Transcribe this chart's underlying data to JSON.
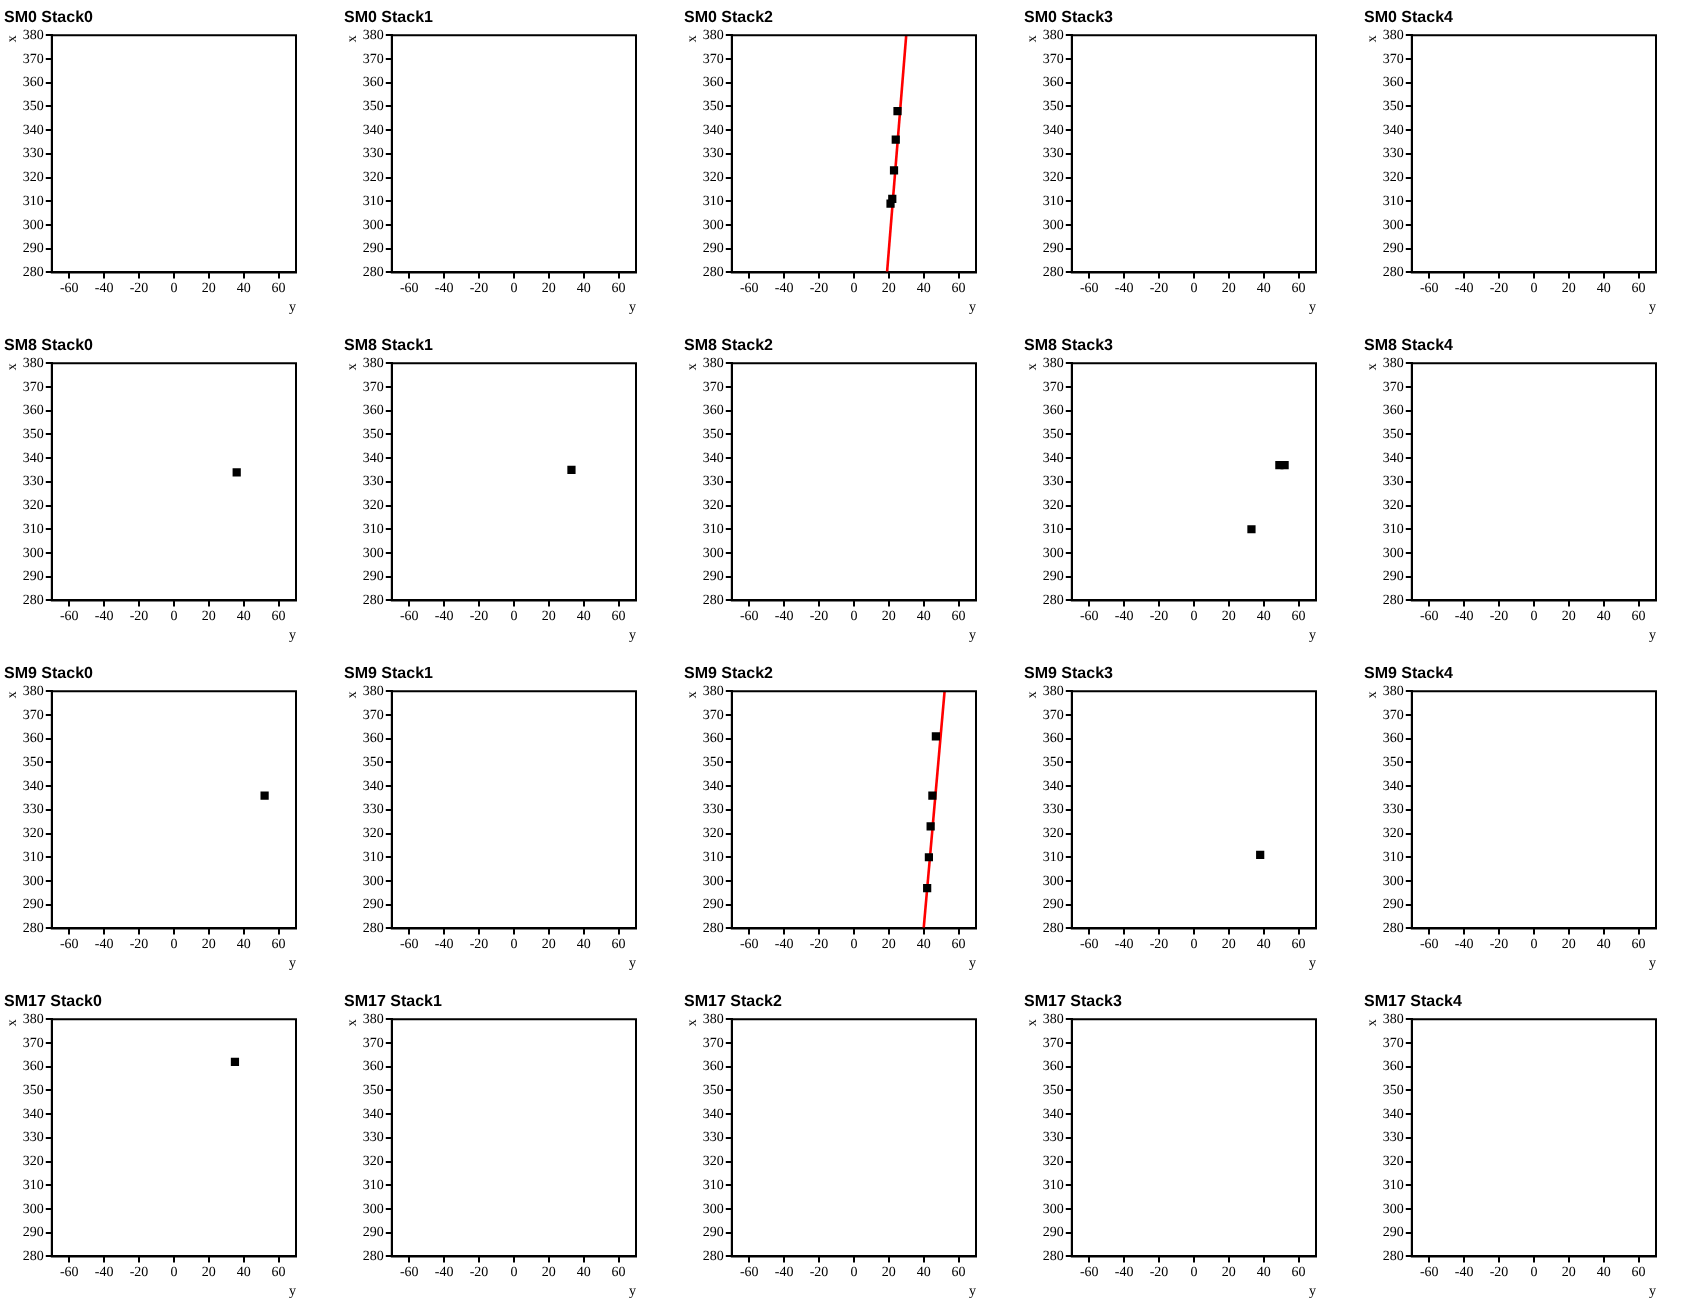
{
  "chart_data": [
    {
      "type": "scatter",
      "title": "SM0 Stack0",
      "xlabel": "y",
      "ylabel": "x",
      "xlim": [
        -70,
        70
      ],
      "xticks": [
        -60,
        -40,
        -20,
        0,
        20,
        40,
        60
      ],
      "ylim": [
        280,
        380
      ],
      "yticks": [
        280,
        290,
        300,
        310,
        320,
        330,
        340,
        350,
        360,
        370,
        380
      ],
      "grid": false,
      "legend": false
    },
    {
      "type": "scatter",
      "title": "SM0 Stack1",
      "xlabel": "y",
      "ylabel": "x",
      "xlim": [
        -70,
        70
      ],
      "xticks": [
        -60,
        -40,
        -20,
        0,
        20,
        40,
        60
      ],
      "ylim": [
        280,
        380
      ],
      "yticks": [
        280,
        290,
        300,
        310,
        320,
        330,
        340,
        350,
        360,
        370,
        380
      ],
      "grid": false,
      "legend": false
    },
    {
      "type": "scatter",
      "title": "SM0 Stack2",
      "xlabel": "y",
      "ylabel": "x",
      "xlim": [
        -70,
        70
      ],
      "xticks": [
        -60,
        -40,
        -20,
        0,
        20,
        40,
        60
      ],
      "ylim": [
        280,
        380
      ],
      "yticks": [
        280,
        290,
        300,
        310,
        320,
        330,
        340,
        350,
        360,
        370,
        380
      ],
      "grid": false,
      "legend": false,
      "marker": "square",
      "series": [
        {
          "type": "scatter",
          "color": "#000000",
          "x": [
            25,
            24,
            23,
            22,
            21
          ],
          "values": [
            348,
            336,
            323,
            311,
            309
          ]
        },
        {
          "type": "line",
          "color": "#ff0000",
          "marker": "none",
          "x": [
            19,
            30
          ],
          "values": [
            280,
            380
          ]
        }
      ]
    },
    {
      "type": "scatter",
      "title": "SM0 Stack3",
      "xlabel": "y",
      "ylabel": "x",
      "xlim": [
        -70,
        70
      ],
      "xticks": [
        -60,
        -40,
        -20,
        0,
        20,
        40,
        60
      ],
      "ylim": [
        280,
        380
      ],
      "yticks": [
        280,
        290,
        300,
        310,
        320,
        330,
        340,
        350,
        360,
        370,
        380
      ],
      "grid": false,
      "legend": false
    },
    {
      "type": "scatter",
      "title": "SM0 Stack4",
      "xlabel": "y",
      "ylabel": "x",
      "xlim": [
        -70,
        70
      ],
      "xticks": [
        -60,
        -40,
        -20,
        0,
        20,
        40,
        60
      ],
      "ylim": [
        280,
        380
      ],
      "yticks": [
        280,
        290,
        300,
        310,
        320,
        330,
        340,
        350,
        360,
        370,
        380
      ],
      "grid": false,
      "legend": false
    },
    {
      "type": "scatter",
      "title": "SM8 Stack0",
      "xlabel": "y",
      "ylabel": "x",
      "xlim": [
        -70,
        70
      ],
      "xticks": [
        -60,
        -40,
        -20,
        0,
        20,
        40,
        60
      ],
      "ylim": [
        280,
        380
      ],
      "yticks": [
        280,
        290,
        300,
        310,
        320,
        330,
        340,
        350,
        360,
        370,
        380
      ],
      "grid": false,
      "legend": false,
      "marker": "square",
      "series": [
        {
          "color": "#000000",
          "x": [
            36
          ],
          "values": [
            334
          ]
        }
      ]
    },
    {
      "type": "scatter",
      "title": "SM8 Stack1",
      "xlabel": "y",
      "ylabel": "x",
      "xlim": [
        -70,
        70
      ],
      "xticks": [
        -60,
        -40,
        -20,
        0,
        20,
        40,
        60
      ],
      "ylim": [
        280,
        380
      ],
      "yticks": [
        280,
        290,
        300,
        310,
        320,
        330,
        340,
        350,
        360,
        370,
        380
      ],
      "grid": false,
      "legend": false,
      "marker": "square",
      "series": [
        {
          "color": "#000000",
          "x": [
            33
          ],
          "values": [
            335
          ]
        }
      ]
    },
    {
      "type": "scatter",
      "title": "SM8 Stack2",
      "xlabel": "y",
      "ylabel": "x",
      "xlim": [
        -70,
        70
      ],
      "xticks": [
        -60,
        -40,
        -20,
        0,
        20,
        40,
        60
      ],
      "ylim": [
        280,
        380
      ],
      "yticks": [
        280,
        290,
        300,
        310,
        320,
        330,
        340,
        350,
        360,
        370,
        380
      ],
      "grid": false,
      "legend": false
    },
    {
      "type": "scatter",
      "title": "SM8 Stack3",
      "xlabel": "y",
      "ylabel": "x",
      "xlim": [
        -70,
        70
      ],
      "xticks": [
        -60,
        -40,
        -20,
        0,
        20,
        40,
        60
      ],
      "ylim": [
        280,
        380
      ],
      "yticks": [
        280,
        290,
        300,
        310,
        320,
        330,
        340,
        350,
        360,
        370,
        380
      ],
      "grid": false,
      "legend": false,
      "marker": "square",
      "series": [
        {
          "color": "#000000",
          "x": [
            33,
            49,
            52
          ],
          "values": [
            310,
            337,
            337
          ]
        }
      ]
    },
    {
      "type": "scatter",
      "title": "SM8 Stack4",
      "xlabel": "y",
      "ylabel": "x",
      "xlim": [
        -70,
        70
      ],
      "xticks": [
        -60,
        -40,
        -20,
        0,
        20,
        40,
        60
      ],
      "ylim": [
        280,
        380
      ],
      "yticks": [
        280,
        290,
        300,
        310,
        320,
        330,
        340,
        350,
        360,
        370,
        380
      ],
      "grid": false,
      "legend": false
    },
    {
      "type": "scatter",
      "title": "SM9 Stack0",
      "xlabel": "y",
      "ylabel": "x",
      "xlim": [
        -70,
        70
      ],
      "xticks": [
        -60,
        -40,
        -20,
        0,
        20,
        40,
        60
      ],
      "ylim": [
        280,
        380
      ],
      "yticks": [
        280,
        290,
        300,
        310,
        320,
        330,
        340,
        350,
        360,
        370,
        380
      ],
      "grid": false,
      "legend": false,
      "marker": "square",
      "series": [
        {
          "color": "#000000",
          "x": [
            52
          ],
          "values": [
            336
          ]
        }
      ]
    },
    {
      "type": "scatter",
      "title": "SM9 Stack1",
      "xlabel": "y",
      "ylabel": "x",
      "xlim": [
        -70,
        70
      ],
      "xticks": [
        -60,
        -40,
        -20,
        0,
        20,
        40,
        60
      ],
      "ylim": [
        280,
        380
      ],
      "yticks": [
        280,
        290,
        300,
        310,
        320,
        330,
        340,
        350,
        360,
        370,
        380
      ],
      "grid": false,
      "legend": false
    },
    {
      "type": "scatter",
      "title": "SM9 Stack2",
      "xlabel": "y",
      "ylabel": "x",
      "xlim": [
        -70,
        70
      ],
      "xticks": [
        -60,
        -40,
        -20,
        0,
        20,
        40,
        60
      ],
      "ylim": [
        280,
        380
      ],
      "yticks": [
        280,
        290,
        300,
        310,
        320,
        330,
        340,
        350,
        360,
        370,
        380
      ],
      "grid": false,
      "legend": false,
      "marker": "square",
      "series": [
        {
          "type": "scatter",
          "color": "#000000",
          "x": [
            47,
            45,
            44,
            43,
            42
          ],
          "values": [
            361,
            336,
            323,
            310,
            297
          ]
        },
        {
          "type": "line",
          "color": "#ff0000",
          "marker": "none",
          "x": [
            40,
            52
          ],
          "values": [
            280,
            380
          ]
        }
      ]
    },
    {
      "type": "scatter",
      "title": "SM9 Stack3",
      "xlabel": "y",
      "ylabel": "x",
      "xlim": [
        -70,
        70
      ],
      "xticks": [
        -60,
        -40,
        -20,
        0,
        20,
        40,
        60
      ],
      "ylim": [
        280,
        380
      ],
      "yticks": [
        280,
        290,
        300,
        310,
        320,
        330,
        340,
        350,
        360,
        370,
        380
      ],
      "grid": false,
      "legend": false,
      "marker": "square",
      "series": [
        {
          "color": "#000000",
          "x": [
            38
          ],
          "values": [
            311
          ]
        }
      ]
    },
    {
      "type": "scatter",
      "title": "SM9 Stack4",
      "xlabel": "y",
      "ylabel": "x",
      "xlim": [
        -70,
        70
      ],
      "xticks": [
        -60,
        -40,
        -20,
        0,
        20,
        40,
        60
      ],
      "ylim": [
        280,
        380
      ],
      "yticks": [
        280,
        290,
        300,
        310,
        320,
        330,
        340,
        350,
        360,
        370,
        380
      ],
      "grid": false,
      "legend": false
    },
    {
      "type": "scatter",
      "title": "SM17 Stack0",
      "xlabel": "y",
      "ylabel": "x",
      "xlim": [
        -70,
        70
      ],
      "xticks": [
        -60,
        -40,
        -20,
        0,
        20,
        40,
        60
      ],
      "ylim": [
        280,
        380
      ],
      "yticks": [
        280,
        290,
        300,
        310,
        320,
        330,
        340,
        350,
        360,
        370,
        380
      ],
      "grid": false,
      "legend": false,
      "marker": "square",
      "series": [
        {
          "color": "#000000",
          "x": [
            35
          ],
          "values": [
            362
          ]
        }
      ]
    },
    {
      "type": "scatter",
      "title": "SM17 Stack1",
      "xlabel": "y",
      "ylabel": "x",
      "xlim": [
        -70,
        70
      ],
      "xticks": [
        -60,
        -40,
        -20,
        0,
        20,
        40,
        60
      ],
      "ylim": [
        280,
        380
      ],
      "yticks": [
        280,
        290,
        300,
        310,
        320,
        330,
        340,
        350,
        360,
        370,
        380
      ],
      "grid": false,
      "legend": false
    },
    {
      "type": "scatter",
      "title": "SM17 Stack2",
      "xlabel": "y",
      "ylabel": "x",
      "xlim": [
        -70,
        70
      ],
      "xticks": [
        -60,
        -40,
        -20,
        0,
        20,
        40,
        60
      ],
      "ylim": [
        280,
        380
      ],
      "yticks": [
        280,
        290,
        300,
        310,
        320,
        330,
        340,
        350,
        360,
        370,
        380
      ],
      "grid": false,
      "legend": false
    },
    {
      "type": "scatter",
      "title": "SM17 Stack3",
      "xlabel": "y",
      "ylabel": "x",
      "xlim": [
        -70,
        70
      ],
      "xticks": [
        -60,
        -40,
        -20,
        0,
        20,
        40,
        60
      ],
      "ylim": [
        280,
        380
      ],
      "yticks": [
        280,
        290,
        300,
        310,
        320,
        330,
        340,
        350,
        360,
        370,
        380
      ],
      "grid": false,
      "legend": false
    },
    {
      "type": "scatter",
      "title": "SM17 Stack4",
      "xlabel": "y",
      "ylabel": "x",
      "xlim": [
        -70,
        70
      ],
      "xticks": [
        -60,
        -40,
        -20,
        0,
        20,
        40,
        60
      ],
      "ylim": [
        280,
        380
      ],
      "yticks": [
        280,
        290,
        300,
        310,
        320,
        330,
        340,
        350,
        360,
        370,
        380
      ],
      "grid": false,
      "legend": false
    }
  ]
}
